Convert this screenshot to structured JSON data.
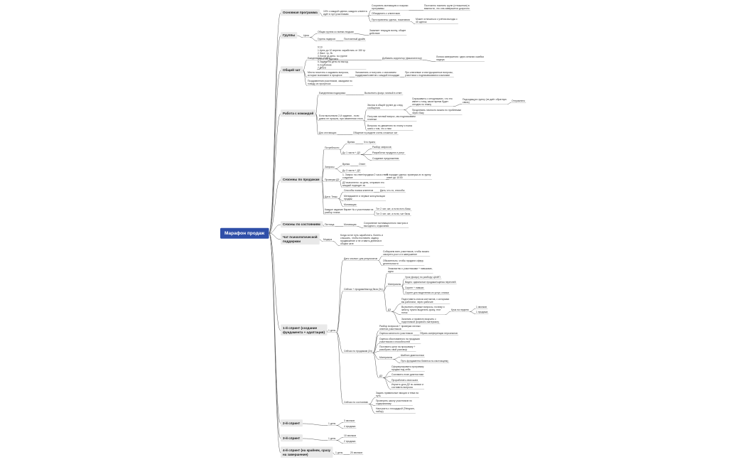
{
  "root": {
    "label": "Марафон продаж",
    "children": [
      {
        "label": "Основная программа",
        "children": [
          {
            "label": "10% с каждой сделки, каждого клиента\nидёт в пул участникам",
            "children": [
              {
                "label": "Сохранить мотивацию и покупки\nпрограммы",
                "children": [
                  {
                    "label": "Постоянно помнить групп (отношения) в\nважности, что она завершится досрочно",
                    "children": []
                  }
                ]
              },
              {
                "label": "Объединить с клиентами",
                "children": []
              },
              {
                "label": "Пути привлечь сделок, пожелания",
                "children": [
                  {
                    "label": "Может отличаться с учётом выгоды с\n40 сделок",
                    "children": []
                  }
                ]
              }
            ]
          }
        ]
      },
      {
        "label": "Группы",
        "children": [
          {
            "label": "Цели",
            "children": [
              {
                "label": "Общая группа со всеми людьми",
                "children": [
                  {
                    "label": "Заявляет текущую волну, общее\nдействие",
                    "children": []
                  }
                ]
              },
              {
                "label": "Группа лидеров",
                "children": [
                  {
                    "label": "Постоянный драйв",
                    "children": []
                  }
                ]
              }
            ]
          }
        ]
      },
      {
        "label": "Общий чат",
        "children": [
          {
            "label": "Ежедневные отчёты",
            "children": [
              {
                "label": "9:19\n1.Цель до 10 апреля: заработать от 150 тр\n2.Факт: тр, бч\n3.Лотов за день: по группе\n4.Что, ИП сделано\n5.Задачи на день на выход\n6.Состояние\n7.Итоги",
                "children": []
              },
              {
                "label": "Добавить корректор (фасилитатор)",
                "children": [
                  {
                    "label": "Логика завершения: одна сильная ошибка\nлидера",
                    "children": []
                  }
                ]
              }
            ]
          },
          {
            "label": "Места почитать и задавать вопросы,\nкоторые возникают в процессе",
            "children": [
              {
                "label": "Запоминать и получать с описанием\nподдержки/советов с каждой площадки",
                "children": [
                  {
                    "label": "Про ключевые и инструкционные вопросы,\nучастники с подписавшимися ссылками",
                    "children": []
                  }
                ]
              }
            ]
          },
          {
            "label": "Поздравления участников, закидаем по\nповоду их прогресса",
            "children": []
          }
        ]
      },
      {
        "label": "Работа с командой",
        "children": [
          {
            "label": "Ежедневная подкормка",
            "children": [
              {
                "label": "Выполнить фокус личный в ответ",
                "children": []
              }
            ]
          },
          {
            "label": "Если выполнили 2-й задания - если\nдавно не прошли, при изменении этого",
            "children": [
              {
                "label": "Звонок в общей группе до след.\nсообщения",
                "children": [
                  {
                    "label": "Спрашивать о сегодняшних, что это\nимеет к тому, какое время будет\nсегодня по плану",
                    "children": [
                      {
                        "label": "Подходящую группу (не даёт обратную\nсвязь)",
                        "children": [
                          {
                            "label": "Отправлено",
                            "children": []
                          }
                        ]
                      }
                    ]
                  },
                  {
                    "label": "Продлевать личность можно по проблемам\nчерез базу",
                    "children": []
                  }
                ]
              },
              {
                "label": "Получаю личный вопрос, мы подписываем\nплатежи",
                "children": []
              },
              {
                "label": "Вопросы по движению по плану и поиск\nшага о том, что к ним",
                "children": []
              }
            ]
          },
          {
            "label": "Для отстающих",
            "children": [
              {
                "label": "Общение в разделе очень сложных чат",
                "children": []
              }
            ]
          }
        ]
      },
      {
        "label": "Сезонны по продажам",
        "children": [
          {
            "label": "Потребности",
            "children": [
              {
                "label": "Время",
                "children": [
                  {
                    "label": "Что нужно",
                    "children": []
                  }
                ]
              },
              {
                "label": "До 1 части + ДЗ",
                "children": [
                  {
                    "label": "Разбор запросов",
                    "children": []
                  },
                  {
                    "label": "Разработка продукта и услуг",
                    "children": []
                  },
                  {
                    "label": "Создание предложения",
                    "children": []
                  }
                ]
              }
            ]
          },
          {
            "label": "Запросы",
            "children": [
              {
                "label": "Время",
                "children": [
                  {
                    "label": "Ответ",
                    "children": []
                  }
                ]
              },
              {
                "label": "До 3 части + ДЗ",
                "children": []
              }
            ]
          },
          {
            "label": "Проверка ДЗ",
            "children": [
              {
                "label": "1. Запрос на ответ/продажи 2 часа ответ\nсоздание",
                "children": [
                  {
                    "label": "В порядке сделок: проверка их в группу\nответ до 10:00",
                    "children": []
                  }
                ]
              },
              {
                "label": "ДЗ выполнено: за день, отправил его\nкаждый подходит за",
                "children": []
              }
            ]
          },
          {
            "label": "Дата: Темы",
            "children": [
              {
                "label": "Способы поиска клиентов",
                "children": [
                  {
                    "label": "Дата, что-то, способы",
                    "children": []
                  }
                ]
              },
              {
                "label": "Менеджмент и первые консультации\nпродаж",
                "children": []
              },
              {
                "label": "Мотивация",
                "children": []
              }
            ]
          },
          {
            "label": "Каждое задание бирает № к участникам на\nразбор плана",
            "children": [
              {
                "label": "Тот 2 чат, чат, а если есть базы",
                "children": []
              },
              {
                "label": "Тот 3 чат, чат, а если, чат базы",
                "children": []
              }
            ]
          }
        ]
      },
      {
        "label": "Сезоны по состояниям",
        "children": [
          {
            "label": "Пятница",
            "children": [
              {
                "label": "Мотивация",
                "children": [
                  {
                    "label": "Сохранение мотивационного настроя и\nвыходного, отдыхания",
                    "children": []
                  }
                ]
              }
            ]
          }
        ]
      },
      {
        "label": "Чат психологической\nподдержки",
        "children": [
          {
            "label": "Модера",
            "children": [
              {
                "label": "Когда хотят путь заработать, болеть и\nслышать, чтобы поставить задачу,\nпродвижение и не ставить дневник в\nобщем чате",
                "children": []
              }
            ]
          }
        ]
      },
      {
        "label": "1-й спринт (создание\nфундамента + адаптация)",
        "children": [
          {
            "label": "1 день",
            "children": [
              {
                "label": "Дать чеклист для результатов",
                "children": [
                  {
                    "label": "Собираем всех участников, чтобы можно\nсмотреть рост и в завершение",
                    "children": []
                  },
                  {
                    "label": "Обязательно, чтобы продали сферу\nдеятельности",
                    "children": []
                  }
                ]
              },
              {
                "label": "Сейчас + продажи/выход база (3ч)",
                "children": [
                  {
                    "label": "Знакомство с участниками + навыками,\nидеи",
                    "children": []
                  },
                  {
                    "label": "Материалы",
                    "children": [
                      {
                        "label": "Урок (фокус) по разбору ЦА/ИП",
                        "children": []
                      },
                      {
                        "label": "Видео: идеальные продажи/оценка перечней",
                        "children": []
                      },
                      {
                        "label": "Скрипт + навыки",
                        "children": []
                      },
                      {
                        "label": "Скрипт для выделения из услуг, списки",
                        "children": []
                      }
                    ]
                  },
                  {
                    "label": "ДЗ",
                    "children": [
                      {
                        "label": "Подготовить список контактов, с которыми\nвы работали, через рабочие",
                        "children": []
                      },
                      {
                        "label": "Выполнить первые вопросы, почему и\nзаботу, нужно выделить сразу, этот\nпоток",
                        "children": [
                          {
                            "label": "Куча на неделю",
                            "children": [
                              {
                                "label": "1 звонков",
                                "children": []
                              },
                              {
                                "label": "1 продажа",
                                "children": []
                              }
                            ]
                          }
                        ]
                      },
                      {
                        "label": "Зачитать и провести выучить с\nподготовкой формой к материалу",
                        "children": []
                      }
                    ]
                  }
                ]
              },
              {
                "label": "Сейчас по продажам (3ч)",
                "children": [
                  {
                    "label": "Разбор вопросов + проверка личных\nответов участников",
                    "children": []
                  },
                  {
                    "label": "Оценка занятости участников",
                    "children": [
                      {
                        "label": "Убрать конференции персоналов",
                        "children": []
                      }
                    ]
                  },
                  {
                    "label": "Оценка обоснованного на продажах\nучастников и способностей",
                    "children": []
                  },
                  {
                    "label": "Поставить цели на программу +\nразобрать свой разговор",
                    "children": []
                  },
                  {
                    "label": "Материалы",
                    "children": [
                      {
                        "label": "Шаблон диагностики",
                        "children": []
                      },
                      {
                        "label": "Путь фундамента бизнеса по-настоящему",
                        "children": []
                      }
                    ]
                  },
                  {
                    "label": "ДЗ",
                    "children": [
                      {
                        "label": "Сформулировать программу\nпродаж под себя",
                        "children": []
                      },
                      {
                        "label": "Составить план диагностики",
                        "children": []
                      },
                      {
                        "label": "Проработать свои шаги",
                        "children": []
                      },
                      {
                        "label": "Изучить урок ДЗ по записи и\nсоставить вопросы",
                        "children": []
                      }
                    ]
                  }
                ]
              },
              {
                "label": "Сейчас по состоянию",
                "children": [
                  {
                    "label": "Задать правильные эмоции и тема на\nпуть",
                    "children": []
                  },
                  {
                    "label": "Проверить школу участников по\nсодержимому",
                    "children": []
                  },
                  {
                    "label": "Настроить с площадкой (Telegram,\nнабор)",
                    "children": []
                  }
                ]
              }
            ]
          }
        ]
      },
      {
        "label": "2-й спринт",
        "children": [
          {
            "label": "1 день",
            "children": [
              {
                "label": "3 звонков",
                "children": []
              },
              {
                "label": "4 продажи",
                "children": []
              }
            ]
          }
        ]
      },
      {
        "label": "3-й спринт",
        "children": [
          {
            "label": "1 день",
            "children": [
              {
                "label": "10 звонков",
                "children": []
              },
              {
                "label": "2 продажи",
                "children": []
              }
            ]
          }
        ]
      },
      {
        "label": "4-й спринт (на крайняк, сразу\nна завершение)",
        "children": [
          {
            "label": "1 день",
            "children": [
              {
                "label": "20 звонков",
                "children": []
              }
            ]
          }
        ]
      }
    ]
  }
}
